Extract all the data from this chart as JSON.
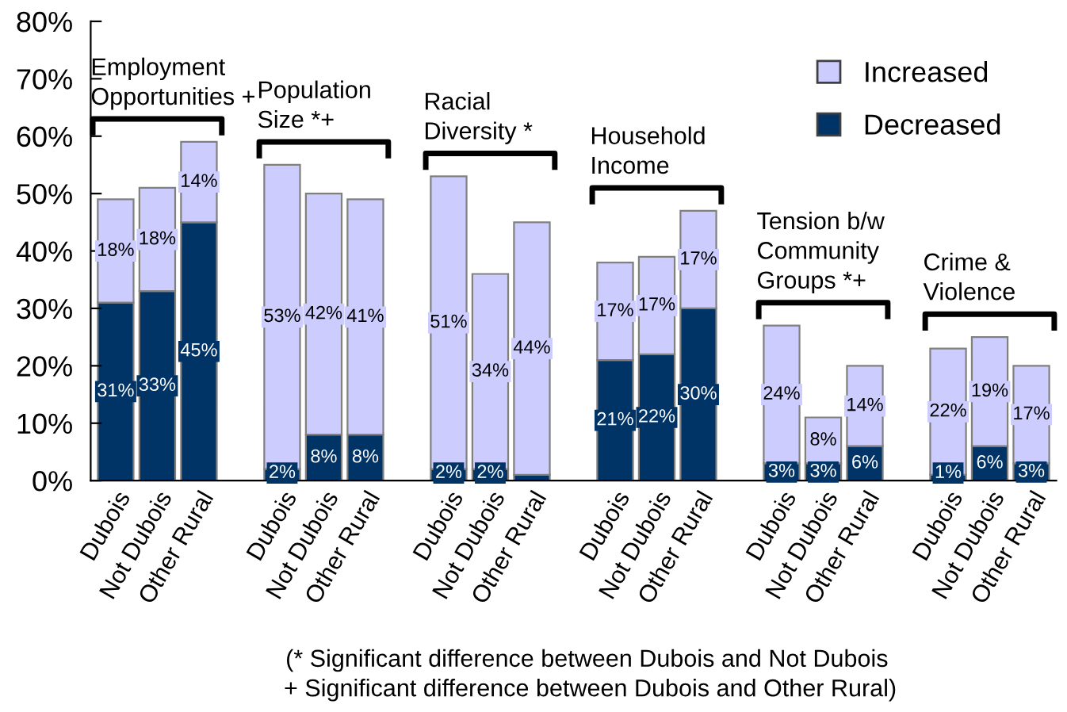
{
  "chart_data": {
    "type": "bar",
    "stacked": true,
    "categories": [
      "Dubois",
      "Not Dubois",
      "Other Rural",
      null,
      "Dubois",
      "Not Dubois",
      "Other Rural",
      null,
      "Dubois",
      "Not Dubois",
      "Other Rural",
      null,
      "Dubois",
      "Not Dubois",
      "Other Rural",
      null,
      "Dubois",
      "Not Dubois",
      "Other Rural",
      null,
      "Dubois",
      "Not Dubois",
      "Other Rural"
    ],
    "series": [
      {
        "name": "Decreased",
        "color": "#003366",
        "values": [
          31,
          33,
          45,
          null,
          2,
          8,
          8,
          null,
          2,
          2,
          1,
          null,
          21,
          22,
          30,
          null,
          3,
          3,
          6,
          null,
          1,
          6,
          3
        ],
        "value_labels": [
          "31%",
          "33%",
          "45%",
          null,
          "2%",
          "8%",
          "8%",
          null,
          "2%",
          "2%",
          null,
          null,
          "21%",
          "22%",
          "30%",
          null,
          "3%",
          "3%",
          "6%",
          null,
          "1%",
          "6%",
          "3%"
        ]
      },
      {
        "name": "Increased",
        "color": "#ccccff",
        "values": [
          18,
          18,
          14,
          null,
          53,
          42,
          41,
          null,
          51,
          34,
          44,
          null,
          17,
          17,
          17,
          null,
          24,
          8,
          14,
          null,
          22,
          19,
          17
        ],
        "value_labels": [
          "18%",
          "18%",
          "14%",
          null,
          "53%",
          "42%",
          "41%",
          null,
          "51%",
          "34%",
          "44%",
          null,
          "17%",
          "17%",
          "17%",
          null,
          "24%",
          "8%",
          "14%",
          null,
          "22%",
          "19%",
          "17%"
        ]
      }
    ],
    "ylim": [
      0,
      80
    ],
    "yticks": [
      {
        "value": 0,
        "label": "0%"
      },
      {
        "value": 10,
        "label": "10%"
      },
      {
        "value": 20,
        "label": "20%"
      },
      {
        "value": 30,
        "label": "30%"
      },
      {
        "value": 40,
        "label": "40%"
      },
      {
        "value": 50,
        "label": "50%"
      },
      {
        "value": 60,
        "label": "60%"
      },
      {
        "value": 70,
        "label": "70%"
      },
      {
        "value": 80,
        "label": "80%"
      }
    ],
    "grid": false,
    "legend": "top right",
    "annotations": [
      "Employment\nOpportunities +",
      "Population\nSize *+",
      "Racial\nDiversity *",
      "Household\nIncome",
      "Tension b/w\nCommunity\nGroups *+",
      "Crime &\nViolence",
      "(* Significant difference between Dubois and Not Dubois\n + Significant difference between Dubois and Other Rural)"
    ]
  }
}
